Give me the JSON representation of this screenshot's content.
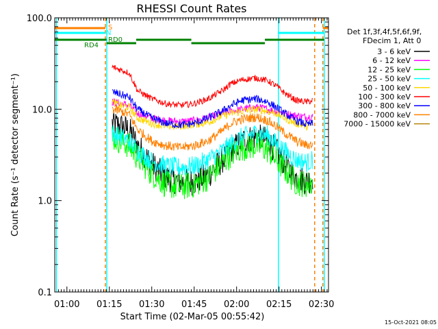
{
  "chart_data": {
    "type": "line",
    "title": "RHESSI Count Rates",
    "xlabel": "Start Time (02-Mar-05 00:55:42)",
    "ylabel": "Count Rate (s⁻¹ detector segment⁻¹)",
    "ylog": true,
    "ylim": [
      0.1,
      100
    ],
    "xlim_minutes": [
      55.7,
      152.5
    ],
    "x_ticks": [
      {
        "label": "01:00",
        "minute": 60
      },
      {
        "label": "01:15",
        "minute": 75
      },
      {
        "label": "01:30",
        "minute": 90
      },
      {
        "label": "01:45",
        "minute": 105
      },
      {
        "label": "02:00",
        "minute": 120
      },
      {
        "label": "02:15",
        "minute": 135
      },
      {
        "label": "02:30",
        "minute": 150
      }
    ],
    "y_ticks": [
      {
        "label": "0.1",
        "value": 0.1
      },
      {
        "label": "1.0",
        "value": 1
      },
      {
        "label": "10.0",
        "value": 10
      },
      {
        "label": "100.0",
        "value": 100
      }
    ],
    "legend_header": [
      "Det 1f,3f,4f,5f,6f,9f,",
      "FDecim 1, Att 0"
    ],
    "series": [
      {
        "name": "3 - 6 keV",
        "color": "#000000",
        "points": [
          [
            76,
            7.0
          ],
          [
            79,
            6.5
          ],
          [
            82,
            6.0
          ],
          [
            85,
            4.0
          ],
          [
            90,
            2.5
          ],
          [
            95,
            1.8
          ],
          [
            100,
            1.6
          ],
          [
            105,
            1.6
          ],
          [
            110,
            1.9
          ],
          [
            115,
            2.8
          ],
          [
            118,
            3.5
          ],
          [
            122,
            4.5
          ],
          [
            127,
            5.0
          ],
          [
            131,
            4.5
          ],
          [
            134,
            3.5
          ],
          [
            137,
            2.5
          ],
          [
            141,
            1.8
          ],
          [
            145,
            1.6
          ],
          [
            147,
            1.8
          ]
        ]
      },
      {
        "name": "6 - 12 keV",
        "color": "#ff00ff",
        "points": [
          [
            76,
            12
          ],
          [
            79,
            11.5
          ],
          [
            82,
            11
          ],
          [
            85,
            9
          ],
          [
            90,
            8
          ],
          [
            95,
            7.5
          ],
          [
            100,
            7.3
          ],
          [
            105,
            7.5
          ],
          [
            110,
            8
          ],
          [
            115,
            9
          ],
          [
            118,
            9.5
          ],
          [
            122,
            10
          ],
          [
            127,
            10.5
          ],
          [
            131,
            10
          ],
          [
            134,
            9.5
          ],
          [
            137,
            9
          ],
          [
            141,
            8.5
          ],
          [
            145,
            8.2
          ],
          [
            147,
            8.5
          ]
        ]
      },
      {
        "name": "12 - 25 keV",
        "color": "#00ff00",
        "points": [
          [
            76,
            5.0
          ],
          [
            79,
            4.5
          ],
          [
            82,
            4.0
          ],
          [
            85,
            3.0
          ],
          [
            90,
            2.0
          ],
          [
            95,
            1.5
          ],
          [
            100,
            1.4
          ],
          [
            105,
            1.5
          ],
          [
            110,
            1.8
          ],
          [
            115,
            2.6
          ],
          [
            118,
            3.2
          ],
          [
            122,
            3.8
          ],
          [
            127,
            4.0
          ],
          [
            131,
            3.6
          ],
          [
            134,
            2.8
          ],
          [
            137,
            2.2
          ],
          [
            141,
            1.6
          ],
          [
            145,
            1.5
          ],
          [
            147,
            1.6
          ]
        ]
      },
      {
        "name": "25 - 50 keV",
        "color": "#00ffff",
        "points": [
          [
            76,
            5.5
          ],
          [
            79,
            5.0
          ],
          [
            82,
            4.5
          ],
          [
            85,
            3.5
          ],
          [
            90,
            2.7
          ],
          [
            95,
            2.4
          ],
          [
            100,
            2.3
          ],
          [
            105,
            2.4
          ],
          [
            110,
            2.8
          ],
          [
            115,
            3.5
          ],
          [
            118,
            4.2
          ],
          [
            122,
            5.0
          ],
          [
            127,
            5.5
          ],
          [
            131,
            5.2
          ],
          [
            134,
            4.2
          ],
          [
            137,
            3.5
          ],
          [
            141,
            2.8
          ],
          [
            145,
            2.6
          ],
          [
            147,
            2.8
          ]
        ]
      },
      {
        "name": "50 - 100 keV",
        "color": "#ffd700",
        "points": [
          [
            76,
            12
          ],
          [
            79,
            11
          ],
          [
            82,
            10.5
          ],
          [
            85,
            8
          ],
          [
            90,
            7
          ],
          [
            95,
            6.5
          ],
          [
            100,
            6.5
          ],
          [
            105,
            6.8
          ],
          [
            110,
            7.2
          ],
          [
            115,
            8.5
          ],
          [
            118,
            9
          ],
          [
            122,
            9.5
          ],
          [
            127,
            10
          ],
          [
            131,
            9.5
          ],
          [
            134,
            9
          ],
          [
            137,
            8
          ],
          [
            141,
            7
          ],
          [
            145,
            6.5
          ],
          [
            147,
            6.8
          ]
        ]
      },
      {
        "name": "100 - 300 keV",
        "color": "#ff0000",
        "points": [
          [
            76,
            29
          ],
          [
            79,
            27
          ],
          [
            82,
            25
          ],
          [
            85,
            16
          ],
          [
            90,
            13
          ],
          [
            95,
            11.5
          ],
          [
            100,
            11
          ],
          [
            105,
            11.5
          ],
          [
            110,
            13
          ],
          [
            115,
            16
          ],
          [
            118,
            19
          ],
          [
            122,
            21
          ],
          [
            127,
            22
          ],
          [
            131,
            20.5
          ],
          [
            134,
            18
          ],
          [
            137,
            15
          ],
          [
            141,
            12.5
          ],
          [
            145,
            12
          ],
          [
            147,
            12.5
          ]
        ]
      },
      {
        "name": "300 - 800 keV",
        "color": "#0000ff",
        "points": [
          [
            76,
            15.5
          ],
          [
            79,
            14.5
          ],
          [
            82,
            13.5
          ],
          [
            85,
            10
          ],
          [
            90,
            8
          ],
          [
            95,
            7
          ],
          [
            100,
            6.7
          ],
          [
            105,
            7
          ],
          [
            110,
            8
          ],
          [
            115,
            9.5
          ],
          [
            118,
            11
          ],
          [
            122,
            12.5
          ],
          [
            127,
            13
          ],
          [
            131,
            12
          ],
          [
            134,
            10.5
          ],
          [
            137,
            9
          ],
          [
            141,
            7.5
          ],
          [
            145,
            6.8
          ],
          [
            147,
            7
          ]
        ]
      },
      {
        "name": "800 - 7000 keV",
        "color": "#ff8000",
        "points": [
          [
            76,
            10
          ],
          [
            79,
            9.5
          ],
          [
            82,
            8.8
          ],
          [
            85,
            6
          ],
          [
            90,
            4.5
          ],
          [
            95,
            4.0
          ],
          [
            100,
            3.8
          ],
          [
            105,
            4.0
          ],
          [
            110,
            4.5
          ],
          [
            115,
            5.8
          ],
          [
            118,
            7
          ],
          [
            122,
            7.8
          ],
          [
            127,
            8.2
          ],
          [
            131,
            7.5
          ],
          [
            134,
            6.5
          ],
          [
            137,
            5.5
          ],
          [
            141,
            4.5
          ],
          [
            145,
            4.0
          ],
          [
            147,
            4.2
          ]
        ]
      },
      {
        "name": "7000 - 15000 keV",
        "color": "#b8860b",
        "points": []
      }
    ],
    "vertical_markers": [
      {
        "minute": 56.3,
        "color": "#00ffff"
      },
      {
        "minute": 73.6,
        "color": "#ff8000"
      },
      {
        "minute": 74.1,
        "color": "#00ffff"
      },
      {
        "minute": 134.8,
        "color": "#00ffff"
      },
      {
        "minute": 147.6,
        "color": "#ff8000"
      },
      {
        "minute": 150.5,
        "color": "#ff8000"
      },
      {
        "minute": 151.0,
        "color": "#00ffff"
      }
    ],
    "flag_bars": [
      {
        "label": "S",
        "color": "#ff8000",
        "level": 76,
        "segments": [
          [
            55.7,
            73.6
          ],
          [
            150.5,
            152.5
          ]
        ]
      },
      {
        "label": "N",
        "color": "#00ffff",
        "level": 64,
        "segments": [
          [
            55.7,
            73.6
          ],
          [
            134.8,
            151
          ]
        ]
      },
      {
        "label": "RD0",
        "color": "#008000",
        "level": 55,
        "segments": [
          [
            55.7,
            74
          ],
          [
            84.5,
            84.5
          ],
          [
            84.5,
            104
          ],
          [
            130,
            151
          ]
        ]
      },
      {
        "label": "RD4",
        "color": "#008000",
        "level": 48,
        "segments": [
          [
            74,
            84.5
          ],
          [
            104,
            130
          ]
        ]
      }
    ],
    "timestamp": "15-Oct-2021 08:05"
  }
}
